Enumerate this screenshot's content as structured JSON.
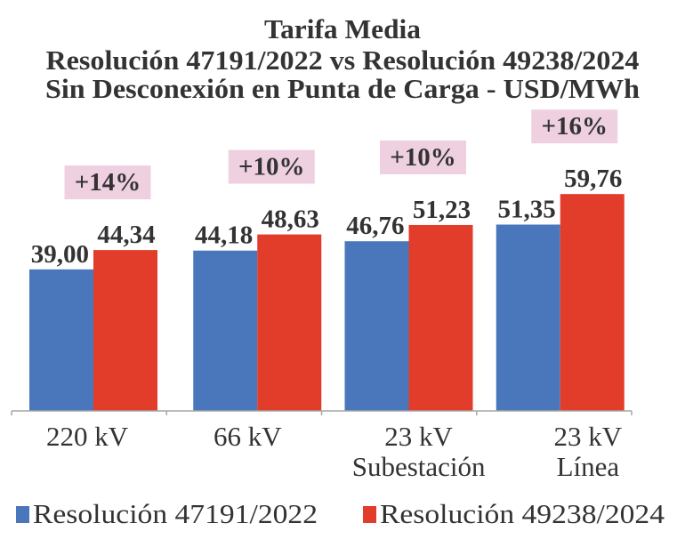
{
  "chart_data": {
    "type": "bar",
    "title": "Tarifa Media",
    "subtitle": "Resolución 47191/2022 vs Resolución 49238/2024",
    "subtitle2": "Sin Desconexión en Punta de Carga - USD/MWh",
    "xlabel": "",
    "ylabel": "",
    "ylim": [
      0,
      70
    ],
    "grid": false,
    "legend_position": "bottom",
    "categories": [
      {
        "line1": "220 kV",
        "line2": ""
      },
      {
        "line1": "66 kV",
        "line2": ""
      },
      {
        "line1": "23 kV",
        "line2": "Subestación"
      },
      {
        "line1": "23 kV",
        "line2": "Línea"
      }
    ],
    "series": [
      {
        "name": "Resolución 47191/2022",
        "color": "#4a76bb",
        "values": [
          39.0,
          44.18,
          46.76,
          51.35
        ],
        "labels": [
          "39,00",
          "44,18",
          "46,76",
          "51,35"
        ]
      },
      {
        "name": "Resolución 49238/2024",
        "color": "#e23c2a",
        "values": [
          44.34,
          48.63,
          51.23,
          59.76
        ],
        "labels": [
          "44,34",
          "48,63",
          "51,23",
          "59,76"
        ]
      }
    ],
    "annotations": [
      "+14%",
      "+10%",
      "+10%",
      "+16%"
    ],
    "annotation_color": "#efd0e1"
  }
}
